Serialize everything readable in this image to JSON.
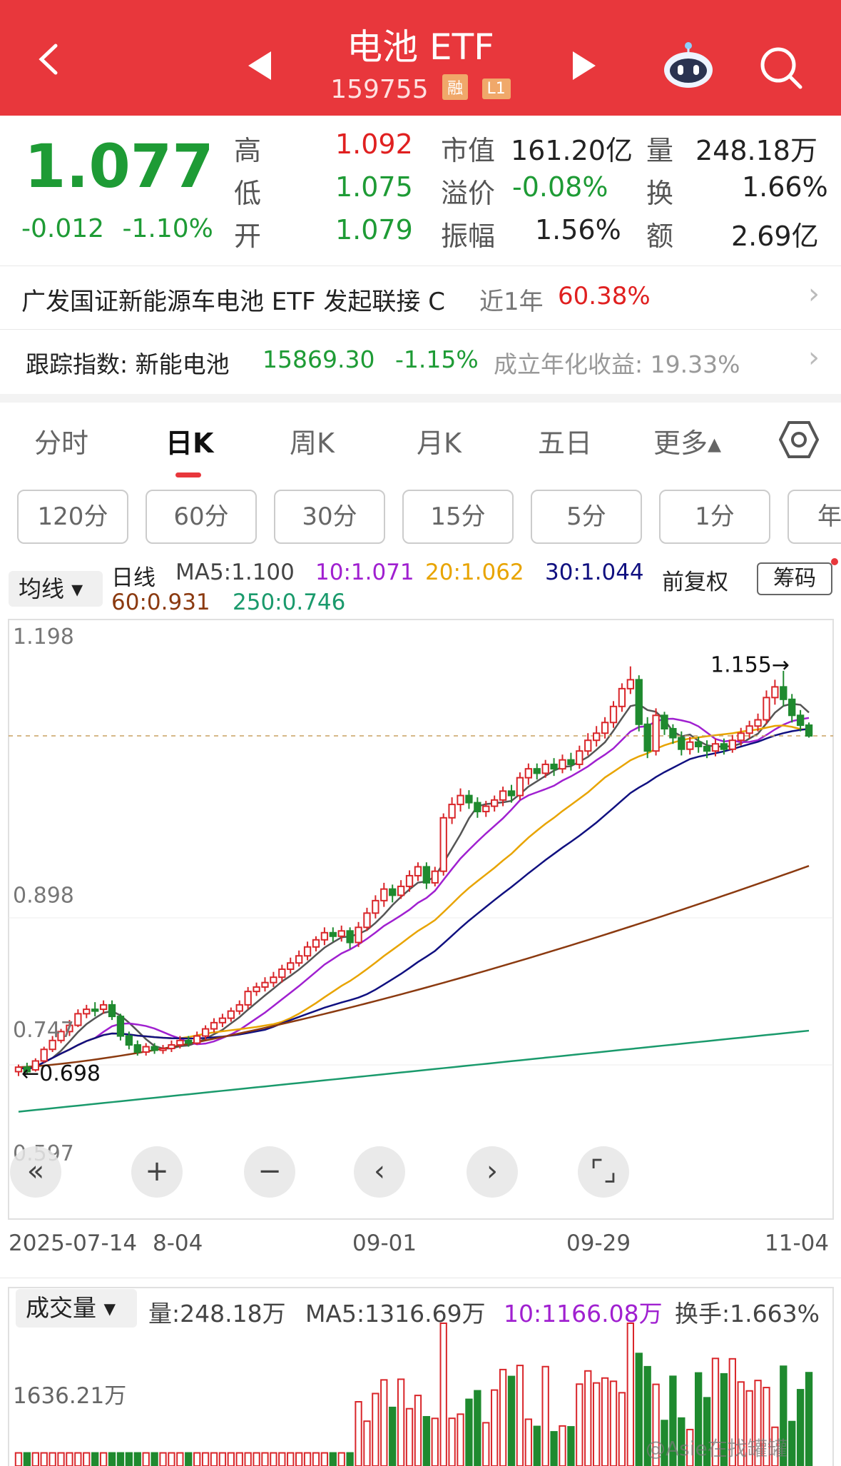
{
  "header": {
    "title": "电池 ETF",
    "code": "159755",
    "badges": [
      "融",
      "L1"
    ],
    "bg_color": "#e8373c"
  },
  "icons": [
    "back-arrow-icon",
    "prev-triangle-icon",
    "next-triangle-icon",
    "robot-assistant-icon",
    "search-icon",
    "chevron-right-icon",
    "hexagon-settings-icon"
  ],
  "quote": {
    "price": "1.077",
    "change": "-0.012",
    "change_pct": "-1.10%",
    "fields": [
      {
        "label": "高",
        "value": "1.092",
        "color": "red"
      },
      {
        "label": "低",
        "value": "1.075",
        "color": "green"
      },
      {
        "label": "开",
        "value": "1.079",
        "color": "green"
      },
      {
        "label": "市值",
        "value": "161.20亿",
        "color": "dark"
      },
      {
        "label": "溢价",
        "value": "-0.08%",
        "color": "green"
      },
      {
        "label": "振幅",
        "value": "1.56%",
        "color": "dark"
      },
      {
        "label": "量",
        "value": "248.18万",
        "color": "dark"
      },
      {
        "label": "换",
        "value": "1.66%",
        "color": "dark"
      },
      {
        "label": "额",
        "value": "2.69亿",
        "color": "dark"
      }
    ]
  },
  "fund_link": {
    "name": "广发国证新能源车电池 ETF 发起联接 C",
    "period_label": "近1年",
    "period_return": "60.38%"
  },
  "index_row": {
    "label": "跟踪指数: 新能电池",
    "value": "15869.30",
    "change_pct": "-1.15%",
    "annual_label": "成立年化收益: 19.33%"
  },
  "tabs": [
    "分时",
    "日K",
    "周K",
    "月K",
    "五日",
    "更多▴"
  ],
  "active_tab": "日K",
  "period_pills": [
    "120分",
    "60分",
    "30分",
    "15分",
    "5分",
    "1分",
    "年"
  ],
  "ma_legend": {
    "dropdown": "均线 ▾",
    "line_type": "日线",
    "ma5": "MA5:1.100",
    "ma10": "10:1.071",
    "ma20": "20:1.062",
    "ma30": "30:1.044",
    "ma60": "60:0.931",
    "ma250": "250:0.746",
    "adjust": "前复权",
    "chips": "筹码"
  },
  "chart_data": {
    "type": "candlestick",
    "y_ticks": [
      "1.198",
      "0.898",
      "0.747",
      "0.597"
    ],
    "x_ticks": [
      "2025-07-14",
      "8-04",
      "09-01",
      "09-29",
      "11-04"
    ],
    "max_annotation": "1.155",
    "min_annotation": "0.698",
    "current_price_line": 1.077,
    "candles_approx": [
      [
        0.7,
        0.705,
        0.695,
        0.708
      ],
      [
        0.705,
        0.7,
        0.698,
        0.71
      ],
      [
        0.702,
        0.712,
        0.7,
        0.715
      ],
      [
        0.712,
        0.725,
        0.71,
        0.728
      ],
      [
        0.725,
        0.735,
        0.722,
        0.74
      ],
      [
        0.735,
        0.745,
        0.732,
        0.748
      ],
      [
        0.745,
        0.752,
        0.74,
        0.758
      ],
      [
        0.752,
        0.765,
        0.75,
        0.77
      ],
      [
        0.765,
        0.77,
        0.76,
        0.775
      ],
      [
        0.77,
        0.768,
        0.762,
        0.778
      ],
      [
        0.77,
        0.775,
        0.765,
        0.78
      ],
      [
        0.775,
        0.762,
        0.758,
        0.78
      ],
      [
        0.762,
        0.74,
        0.735,
        0.765
      ],
      [
        0.74,
        0.73,
        0.725,
        0.745
      ],
      [
        0.73,
        0.722,
        0.718,
        0.735
      ],
      [
        0.722,
        0.728,
        0.718,
        0.732
      ],
      [
        0.728,
        0.724,
        0.72,
        0.732
      ],
      [
        0.724,
        0.726,
        0.72,
        0.73
      ],
      [
        0.726,
        0.73,
        0.722,
        0.735
      ],
      [
        0.73,
        0.735,
        0.726,
        0.74
      ],
      [
        0.735,
        0.732,
        0.728,
        0.74
      ],
      [
        0.732,
        0.74,
        0.73,
        0.745
      ],
      [
        0.74,
        0.748,
        0.736,
        0.752
      ],
      [
        0.748,
        0.755,
        0.744,
        0.76
      ],
      [
        0.755,
        0.76,
        0.75,
        0.765
      ],
      [
        0.76,
        0.768,
        0.756,
        0.772
      ],
      [
        0.768,
        0.775,
        0.764,
        0.78
      ],
      [
        0.775,
        0.79,
        0.77,
        0.795
      ],
      [
        0.79,
        0.795,
        0.785,
        0.8
      ],
      [
        0.795,
        0.8,
        0.79,
        0.806
      ],
      [
        0.8,
        0.806,
        0.795,
        0.812
      ],
      [
        0.806,
        0.815,
        0.8,
        0.82
      ],
      [
        0.815,
        0.822,
        0.81,
        0.828
      ],
      [
        0.822,
        0.83,
        0.818,
        0.836
      ],
      [
        0.83,
        0.84,
        0.825,
        0.846
      ],
      [
        0.84,
        0.848,
        0.835,
        0.852
      ],
      [
        0.848,
        0.856,
        0.842,
        0.862
      ],
      [
        0.856,
        0.852,
        0.846,
        0.862
      ],
      [
        0.852,
        0.858,
        0.846,
        0.864
      ],
      [
        0.858,
        0.845,
        0.838,
        0.862
      ],
      [
        0.845,
        0.862,
        0.84,
        0.868
      ],
      [
        0.862,
        0.878,
        0.858,
        0.884
      ],
      [
        0.878,
        0.892,
        0.872,
        0.898
      ],
      [
        0.892,
        0.905,
        0.885,
        0.912
      ],
      [
        0.905,
        0.898,
        0.89,
        0.91
      ],
      [
        0.898,
        0.908,
        0.894,
        0.915
      ],
      [
        0.908,
        0.92,
        0.902,
        0.926
      ],
      [
        0.92,
        0.93,
        0.914,
        0.935
      ],
      [
        0.93,
        0.912,
        0.905,
        0.935
      ],
      [
        0.912,
        0.925,
        0.908,
        0.93
      ],
      [
        0.925,
        0.985,
        0.92,
        0.99
      ],
      [
        0.985,
        1.0,
        0.978,
        1.008
      ],
      [
        1.0,
        1.01,
        0.992,
        1.018
      ],
      [
        1.01,
        1.002,
        0.995,
        1.016
      ],
      [
        1.002,
        0.992,
        0.985,
        1.008
      ],
      [
        0.992,
        0.998,
        0.986,
        1.004
      ],
      [
        0.998,
        1.005,
        0.992,
        1.01
      ],
      [
        1.005,
        1.015,
        0.998,
        1.02
      ],
      [
        1.015,
        1.01,
        1.002,
        1.022
      ],
      [
        1.01,
        1.03,
        1.005,
        1.036
      ],
      [
        1.03,
        1.04,
        1.022,
        1.046
      ],
      [
        1.04,
        1.035,
        1.028,
        1.046
      ],
      [
        1.035,
        1.045,
        1.03,
        1.05
      ],
      [
        1.045,
        1.04,
        1.032,
        1.052
      ],
      [
        1.04,
        1.05,
        1.035,
        1.056
      ],
      [
        1.05,
        1.045,
        1.038,
        1.058
      ],
      [
        1.045,
        1.06,
        1.04,
        1.066
      ],
      [
        1.06,
        1.072,
        1.055,
        1.08
      ],
      [
        1.072,
        1.08,
        1.065,
        1.088
      ],
      [
        1.08,
        1.092,
        1.074,
        1.098
      ],
      [
        1.092,
        1.11,
        1.086,
        1.116
      ],
      [
        1.11,
        1.13,
        1.104,
        1.136
      ],
      [
        1.13,
        1.14,
        1.124,
        1.155
      ],
      [
        1.14,
        1.09,
        1.082,
        1.145
      ],
      [
        1.09,
        1.06,
        1.052,
        1.098
      ],
      [
        1.06,
        1.1,
        1.055,
        1.108
      ],
      [
        1.1,
        1.085,
        1.078,
        1.104
      ],
      [
        1.085,
        1.075,
        1.068,
        1.09
      ],
      [
        1.075,
        1.062,
        1.055,
        1.082
      ],
      [
        1.062,
        1.07,
        1.056,
        1.076
      ],
      [
        1.07,
        1.065,
        1.058,
        1.076
      ],
      [
        1.065,
        1.06,
        1.052,
        1.072
      ],
      [
        1.06,
        1.068,
        1.054,
        1.074
      ],
      [
        1.068,
        1.062,
        1.056,
        1.074
      ],
      [
        1.062,
        1.072,
        1.058,
        1.078
      ],
      [
        1.072,
        1.08,
        1.066,
        1.086
      ],
      [
        1.08,
        1.088,
        1.074,
        1.094
      ],
      [
        1.088,
        1.095,
        1.082,
        1.102
      ],
      [
        1.095,
        1.12,
        1.09,
        1.128
      ],
      [
        1.12,
        1.132,
        1.112,
        1.14
      ],
      [
        1.132,
        1.118,
        1.11,
        1.15
      ],
      [
        1.118,
        1.1,
        1.092,
        1.124
      ],
      [
        1.1,
        1.089,
        1.082,
        1.106
      ],
      [
        1.089,
        1.077,
        1.075,
        1.092
      ]
    ]
  },
  "chart_controls": [
    "«",
    "+",
    "−",
    "‹",
    "›",
    "⌜⌟"
  ],
  "volume": {
    "dropdown": "成交量 ▾",
    "vol": "量:248.18万",
    "ma5": "MA5:1316.69万",
    "ma10": "10:1166.08万",
    "turnover": "换手:1.663%",
    "y_tick": "1636.21万"
  },
  "watermark": "@Asie在找罐罐"
}
